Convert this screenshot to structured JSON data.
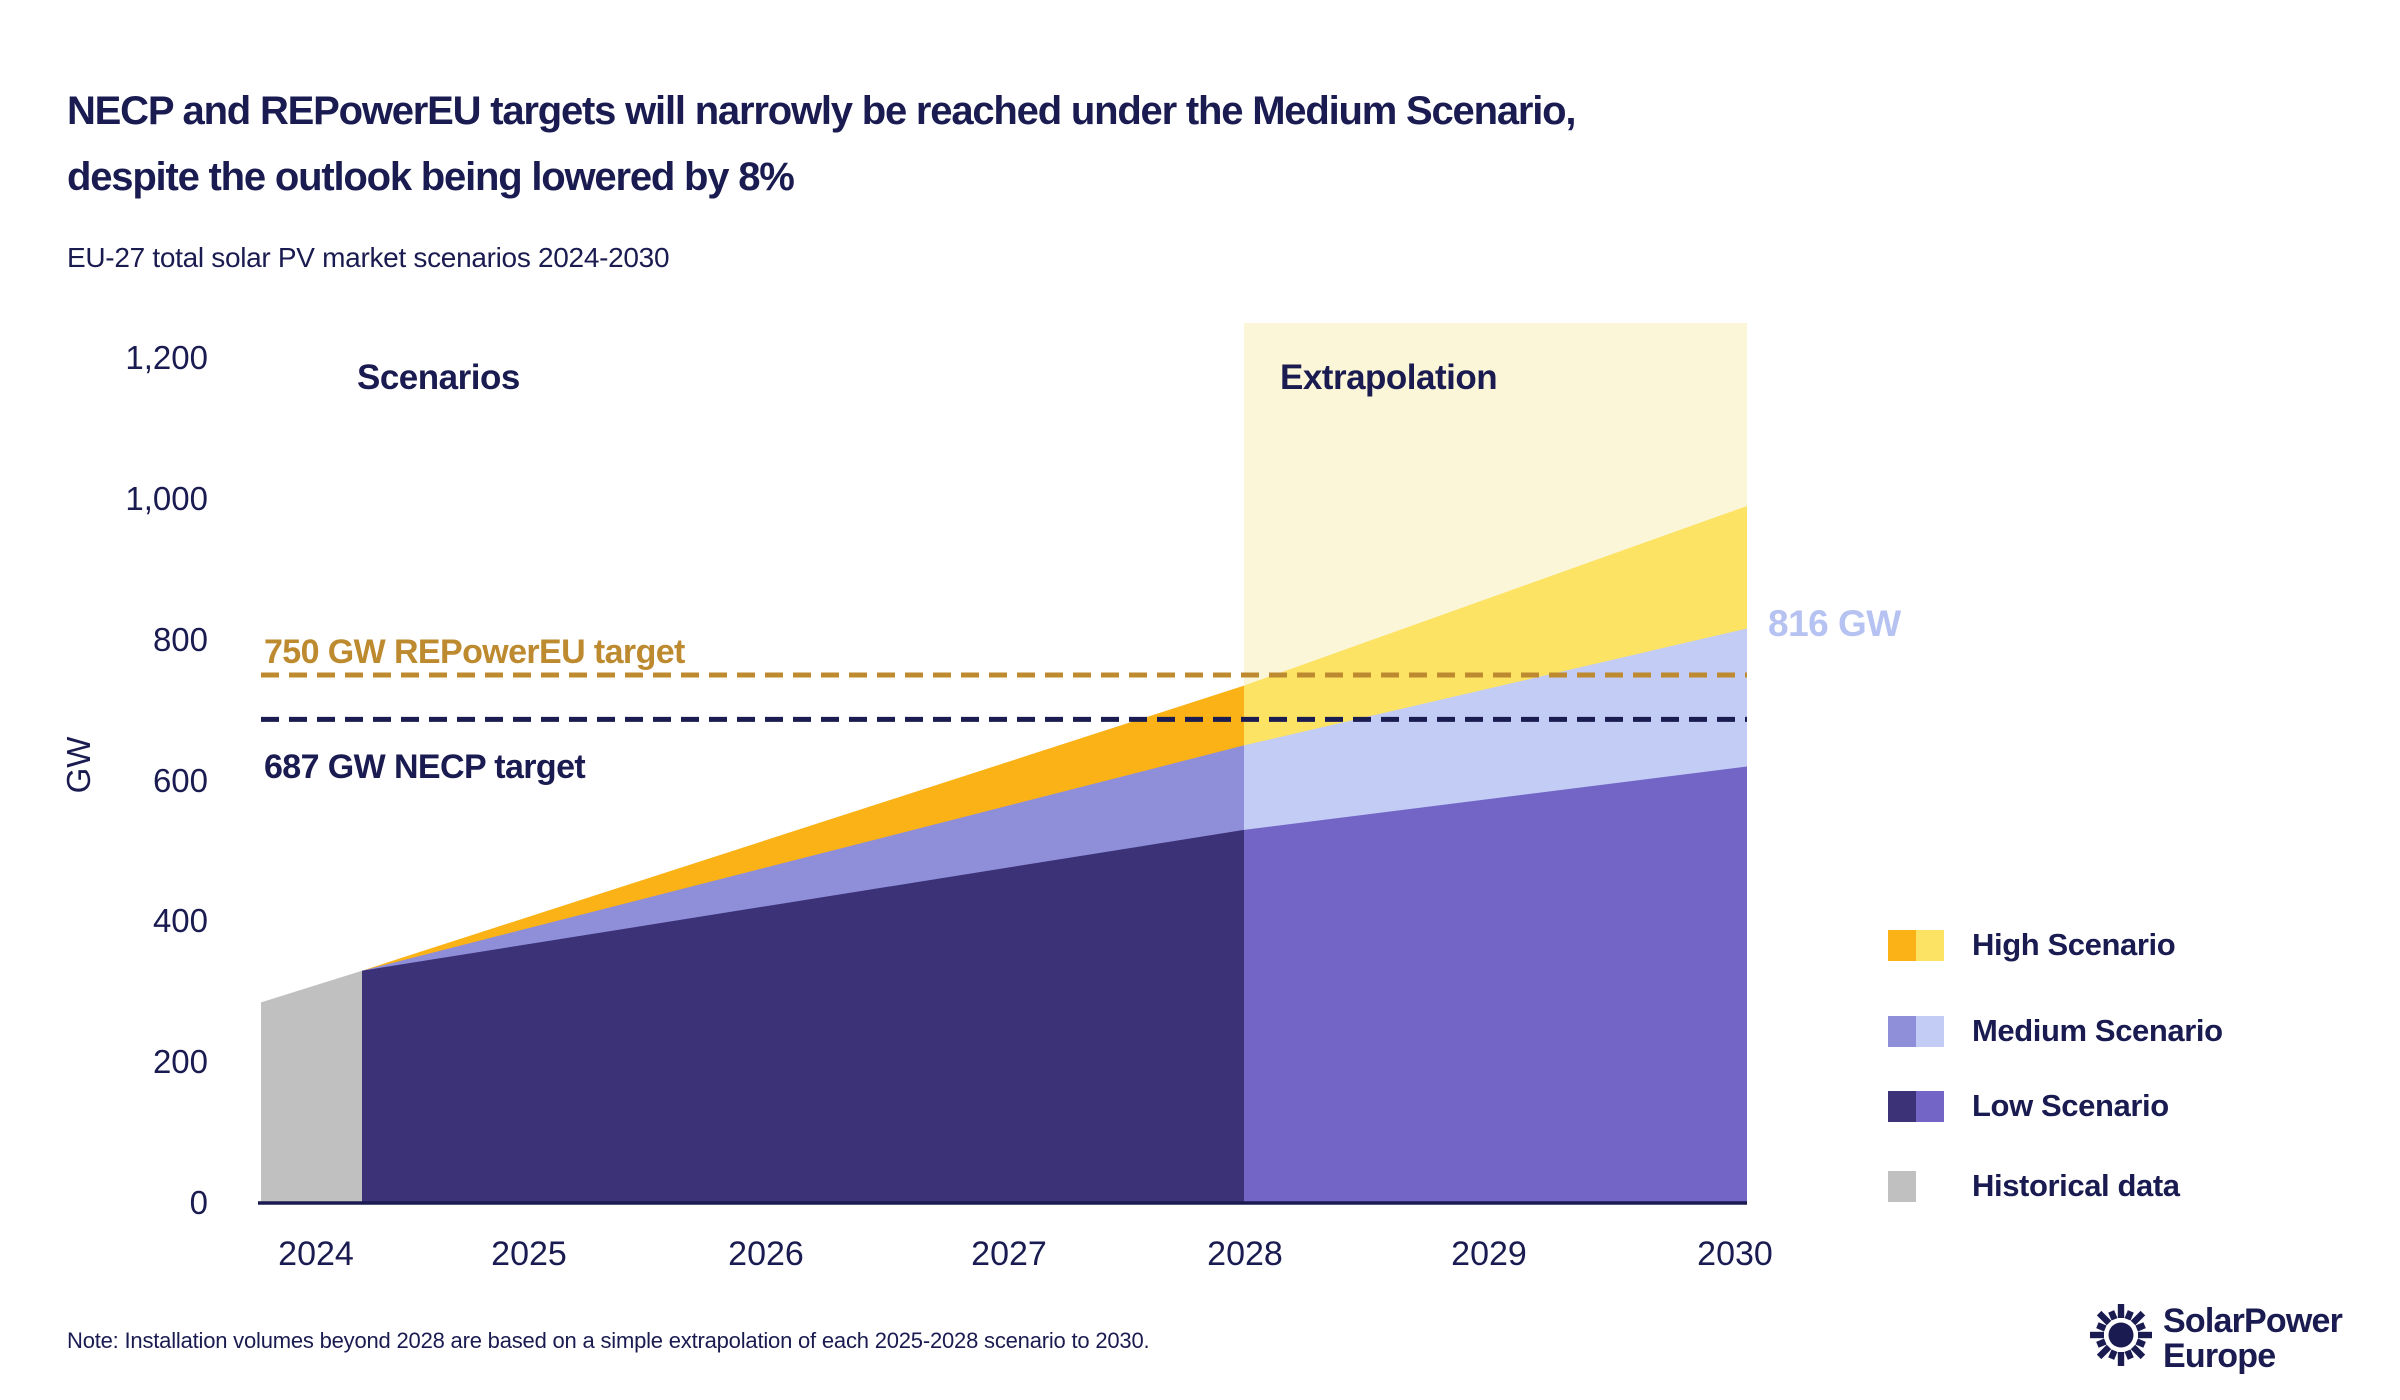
{
  "header": {
    "title_line1": "NECP and REPowerEU targets will narrowly be reached under the Medium Scenario,",
    "title_line2": "despite the outlook being lowered by 8%",
    "subtitle": "EU-27 total solar PV market scenarios 2024-2030"
  },
  "chart_data": {
    "type": "area",
    "title": "EU-27 total solar PV market scenarios 2024-2030",
    "unit": "GW",
    "ylabel": "GW",
    "ylim": [
      0,
      1200
    ],
    "grid": false,
    "y_ticks": [
      {
        "label": "1,200",
        "value": 1200
      },
      {
        "label": "1,000",
        "value": 1000
      },
      {
        "label": "800",
        "value": 800
      },
      {
        "label": "600",
        "value": 600
      },
      {
        "label": "400",
        "value": 400
      },
      {
        "label": "200",
        "value": 200
      },
      {
        "label": "0",
        "value": 0
      }
    ],
    "x_ticks": [
      {
        "label": "2024"
      },
      {
        "label": "2025"
      },
      {
        "label": "2026"
      },
      {
        "label": "2027"
      },
      {
        "label": "2028"
      },
      {
        "label": "2029"
      },
      {
        "label": "2030"
      }
    ],
    "historical": {
      "name": "Historical data",
      "start_gw": 285,
      "gw_2024": 330
    },
    "series": [
      {
        "name": "High Scenario",
        "gw_2024": 330,
        "gw_2028": 735,
        "gw_2030": 990
      },
      {
        "name": "Medium Scenario",
        "gw_2024": 330,
        "gw_2028": 650,
        "gw_2030": 816
      },
      {
        "name": "Low Scenario",
        "gw_2024": 330,
        "gw_2028": 530,
        "gw_2030": 620
      }
    ],
    "regions": [
      {
        "label": "Scenarios",
        "span": [
          2024,
          2028
        ]
      },
      {
        "label": "Extrapolation",
        "span": [
          2028,
          2030
        ]
      }
    ],
    "targets": [
      {
        "label": "750 GW REPowerEU target",
        "gw": 750,
        "color": "#BD8A2F"
      },
      {
        "label": "687 GW NECP target",
        "gw": 687,
        "color": "#1A1B50"
      }
    ],
    "callout": {
      "label": "816 GW",
      "series": "Medium Scenario",
      "year": 2030,
      "value": 816
    }
  },
  "colors": {
    "navy": "#1A1B50",
    "historical": "#C0C0C0",
    "high": [
      "#FBB216",
      "#FCE364"
    ],
    "medium": [
      "#8F8ED9",
      "#C2CCF5"
    ],
    "low": [
      "#3B3278",
      "#7365C6"
    ],
    "extrapolation_band": "#FCF6D8",
    "repowereu_gold": "#BD8A2F",
    "callout_text": "#B6C2F1"
  },
  "legend": {
    "items": [
      {
        "label": "High Scenario",
        "colors": [
          "#FBB216",
          "#FCE364"
        ]
      },
      {
        "label": "Medium Scenario",
        "colors": [
          "#8F8ED9",
          "#C2CCF5"
        ]
      },
      {
        "label": "Low Scenario",
        "colors": [
          "#3B3278",
          "#7365C6"
        ]
      },
      {
        "label": "Historical data",
        "colors": [
          "#C0C0C0"
        ]
      }
    ]
  },
  "note": "Note: Installation volumes beyond 2028 are based on a simple extrapolation of each 2025-2028 scenario to 2030.",
  "logo": {
    "line1": "SolarPower",
    "line2": "Europe"
  }
}
